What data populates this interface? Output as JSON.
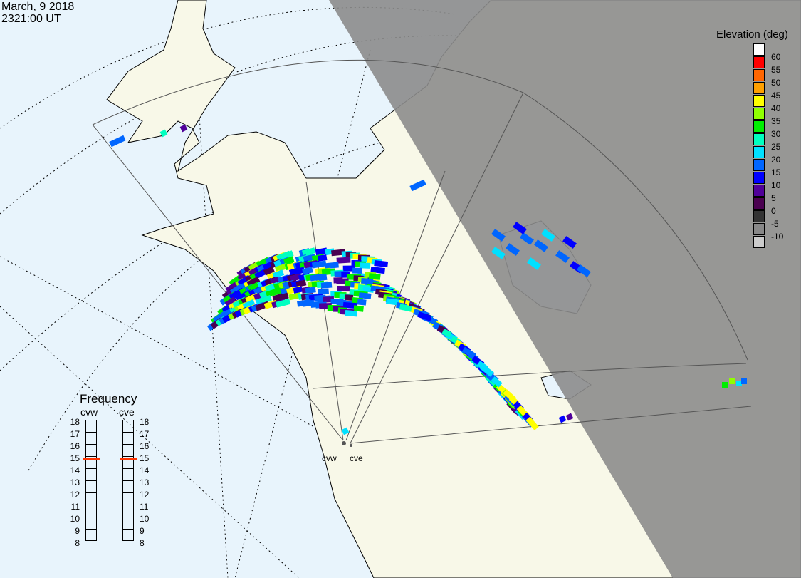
{
  "header": {
    "date": "March, 9 2018",
    "time": "2321:00 UT"
  },
  "colors": {
    "ocean": "#e8f4fc",
    "land": "#f8f8e8",
    "night": "#999999",
    "frequency_marker": "#ff3300"
  },
  "legend": {
    "title": "Elevation (deg)",
    "ticks": [
      "60",
      "55",
      "50",
      "45",
      "40",
      "35",
      "30",
      "25",
      "20",
      "15",
      "10",
      "5",
      "0",
      "-5",
      "-10"
    ],
    "colors": [
      "#ffffff",
      "#ff0000",
      "#ff6600",
      "#ffa000",
      "#ffff00",
      "#90ff00",
      "#00ee00",
      "#00ffc0",
      "#00e0ff",
      "#0066ff",
      "#0000ff",
      "#500099",
      "#4a0050",
      "#333333",
      "#888888",
      "#cccccc"
    ]
  },
  "frequency": {
    "title": "Frequency",
    "radars": [
      {
        "name": "cvw",
        "value_mhz": 14.8
      },
      {
        "name": "cve",
        "value_mhz": 14.8
      }
    ],
    "scale": [
      "18",
      "17",
      "16",
      "15",
      "14",
      "13",
      "12",
      "11",
      "10",
      "9",
      "8"
    ]
  },
  "sites": [
    {
      "name": "cvw"
    },
    {
      "name": "cve"
    }
  ]
}
